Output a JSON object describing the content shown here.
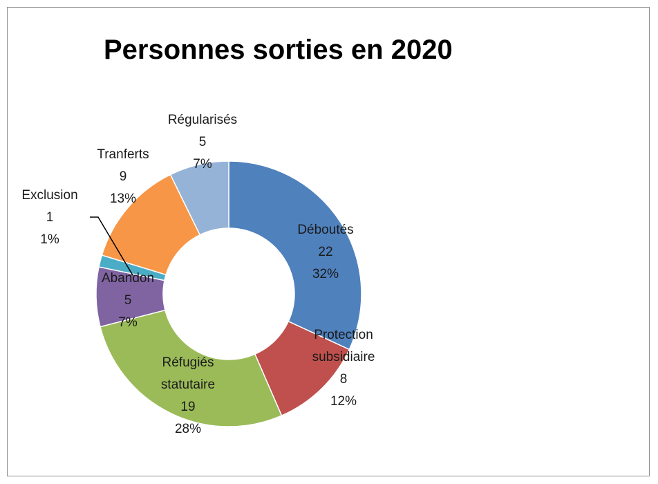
{
  "chart_data": {
    "type": "donut",
    "title": "Personnes sorties en 2020",
    "categories": [
      "Déboutés",
      "Protection subsidiaire",
      "Réfugiés statutaire",
      "Abandon",
      "Exclusion",
      "Tranferts",
      "Régularisés"
    ],
    "values": [
      22,
      8,
      19,
      5,
      1,
      9,
      5
    ],
    "percent_labels": [
      "32%",
      "12%",
      "28%",
      "7%",
      "1%",
      "13%",
      "7%"
    ],
    "colors": [
      "#4f81bd",
      "#c0504d",
      "#9bbb59",
      "#8064a2",
      "#4bacc6",
      "#f79646",
      "#95b3d7"
    ]
  }
}
